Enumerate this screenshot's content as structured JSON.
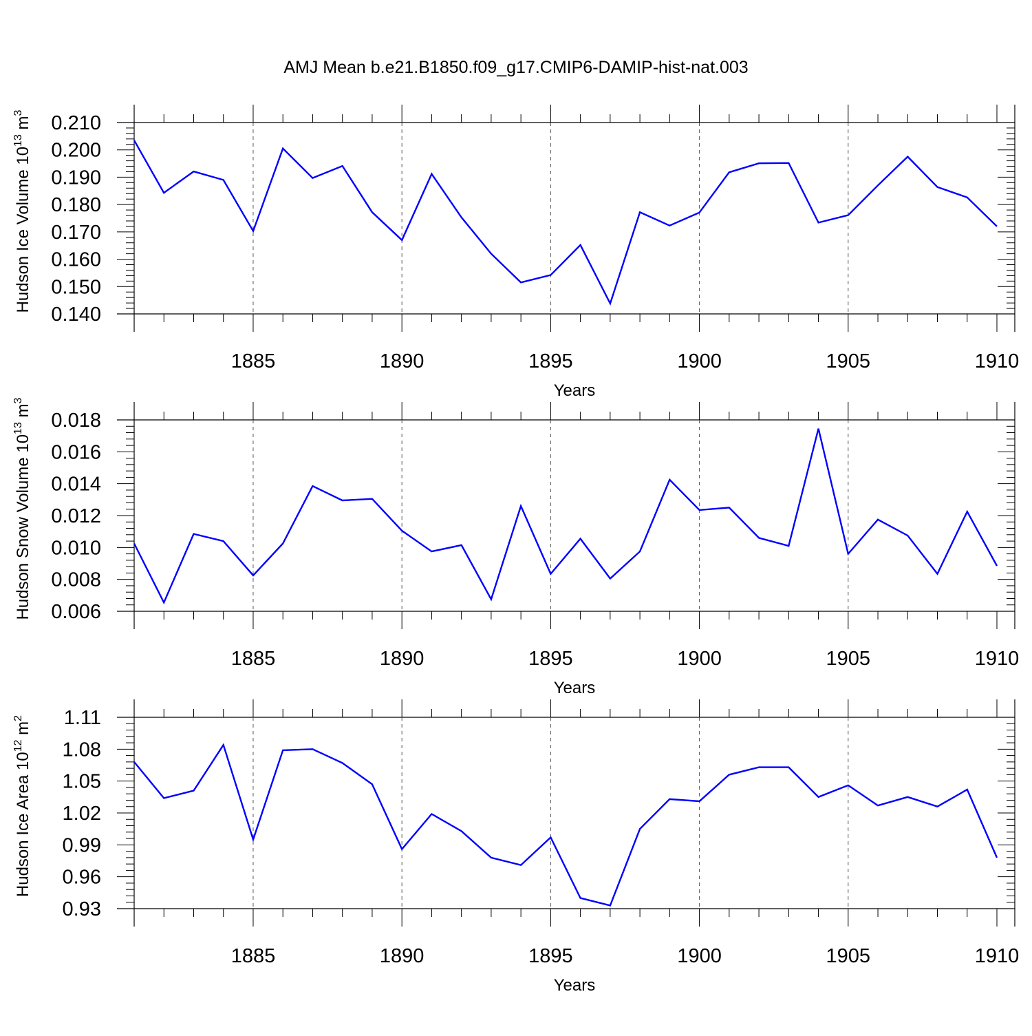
{
  "title": "AMJ Mean b.e21.B1850.f09_g17.CMIP6-DAMIP-hist-nat.003",
  "colors": {
    "series": "#0000ff",
    "axis": "#000000",
    "grid": "#555555"
  },
  "chart_data": [
    {
      "type": "line",
      "ylabel": "Hudson Ice Volume 10",
      "ylabel_sup": "13",
      "ylabel_unit": " m",
      "ylabel_unit_sup": "3",
      "xlabel": "Years",
      "xlim": [
        1881,
        1910
      ],
      "ylim": [
        0.14,
        0.21
      ],
      "yticks": [
        "0.210",
        "0.200",
        "0.190",
        "0.180",
        "0.170",
        "0.160",
        "0.150",
        "0.140"
      ],
      "xticks": [
        "1885",
        "1890",
        "1895",
        "1900",
        "1905",
        "1910"
      ],
      "grid": "vertical dashed at major x ticks",
      "x": [
        1881,
        1882,
        1883,
        1884,
        1885,
        1886,
        1887,
        1888,
        1889,
        1890,
        1891,
        1892,
        1893,
        1894,
        1895,
        1896,
        1897,
        1898,
        1899,
        1900,
        1901,
        1902,
        1903,
        1904,
        1905,
        1906,
        1907,
        1908,
        1909,
        1910
      ],
      "values": [
        0.2035,
        0.1843,
        0.1921,
        0.189,
        0.1703,
        0.2005,
        0.1897,
        0.1941,
        0.1772,
        0.167,
        0.1912,
        0.1753,
        0.162,
        0.1515,
        0.1542,
        0.1652,
        0.1438,
        0.1772,
        0.1723,
        0.1771,
        0.1918,
        0.1951,
        0.1952,
        0.1734,
        0.1761,
        0.187,
        0.1975,
        0.1864,
        0.1826,
        0.172
      ]
    },
    {
      "type": "line",
      "ylabel": "Hudson Snow Volume 10",
      "ylabel_sup": "13",
      "ylabel_unit": " m",
      "ylabel_unit_sup": "3",
      "xlabel": "Years",
      "xlim": [
        1881,
        1910
      ],
      "ylim": [
        0.006,
        0.018
      ],
      "yticks": [
        "0.018",
        "0.016",
        "0.014",
        "0.012",
        "0.010",
        "0.008",
        "0.006"
      ],
      "xticks": [
        "1885",
        "1890",
        "1895",
        "1900",
        "1905",
        "1910"
      ],
      "grid": "vertical dashed at major x ticks",
      "x": [
        1881,
        1882,
        1883,
        1884,
        1885,
        1886,
        1887,
        1888,
        1889,
        1890,
        1891,
        1892,
        1893,
        1894,
        1895,
        1896,
        1897,
        1898,
        1899,
        1900,
        1901,
        1902,
        1903,
        1904,
        1905,
        1906,
        1907,
        1908,
        1909,
        1910
      ],
      "values": [
        0.01025,
        0.00655,
        0.01085,
        0.0104,
        0.00825,
        0.01025,
        0.01385,
        0.01295,
        0.01305,
        0.01105,
        0.00975,
        0.01015,
        0.00675,
        0.0126,
        0.00835,
        0.01055,
        0.00805,
        0.00975,
        0.01425,
        0.01235,
        0.0125,
        0.0106,
        0.0101,
        0.01745,
        0.0096,
        0.01175,
        0.01075,
        0.00835,
        0.01225,
        0.00885
      ]
    },
    {
      "type": "line",
      "ylabel": "Hudson Ice Area 10",
      "ylabel_sup": "12",
      "ylabel_unit": " m",
      "ylabel_unit_sup": "2",
      "xlabel": "Years",
      "xlim": [
        1881,
        1910
      ],
      "ylim": [
        0.93,
        1.11
      ],
      "yticks": [
        "1.11",
        "1.08",
        "1.05",
        "1.02",
        "0.99",
        "0.96",
        "0.93"
      ],
      "xticks": [
        "1885",
        "1890",
        "1895",
        "1900",
        "1905",
        "1910"
      ],
      "grid": "vertical dashed at major x ticks",
      "x": [
        1881,
        1882,
        1883,
        1884,
        1885,
        1886,
        1887,
        1888,
        1889,
        1890,
        1891,
        1892,
        1893,
        1894,
        1895,
        1896,
        1897,
        1898,
        1899,
        1900,
        1901,
        1902,
        1903,
        1904,
        1905,
        1906,
        1907,
        1908,
        1909,
        1910
      ],
      "values": [
        1.068,
        1.034,
        1.041,
        1.084,
        0.995,
        1.079,
        1.08,
        1.067,
        1.047,
        0.986,
        1.019,
        1.003,
        0.978,
        0.971,
        0.997,
        0.94,
        0.933,
        1.005,
        1.033,
        1.031,
        1.056,
        1.063,
        1.063,
        1.035,
        1.046,
        1.027,
        1.035,
        1.026,
        1.042,
        0.978
      ]
    }
  ]
}
